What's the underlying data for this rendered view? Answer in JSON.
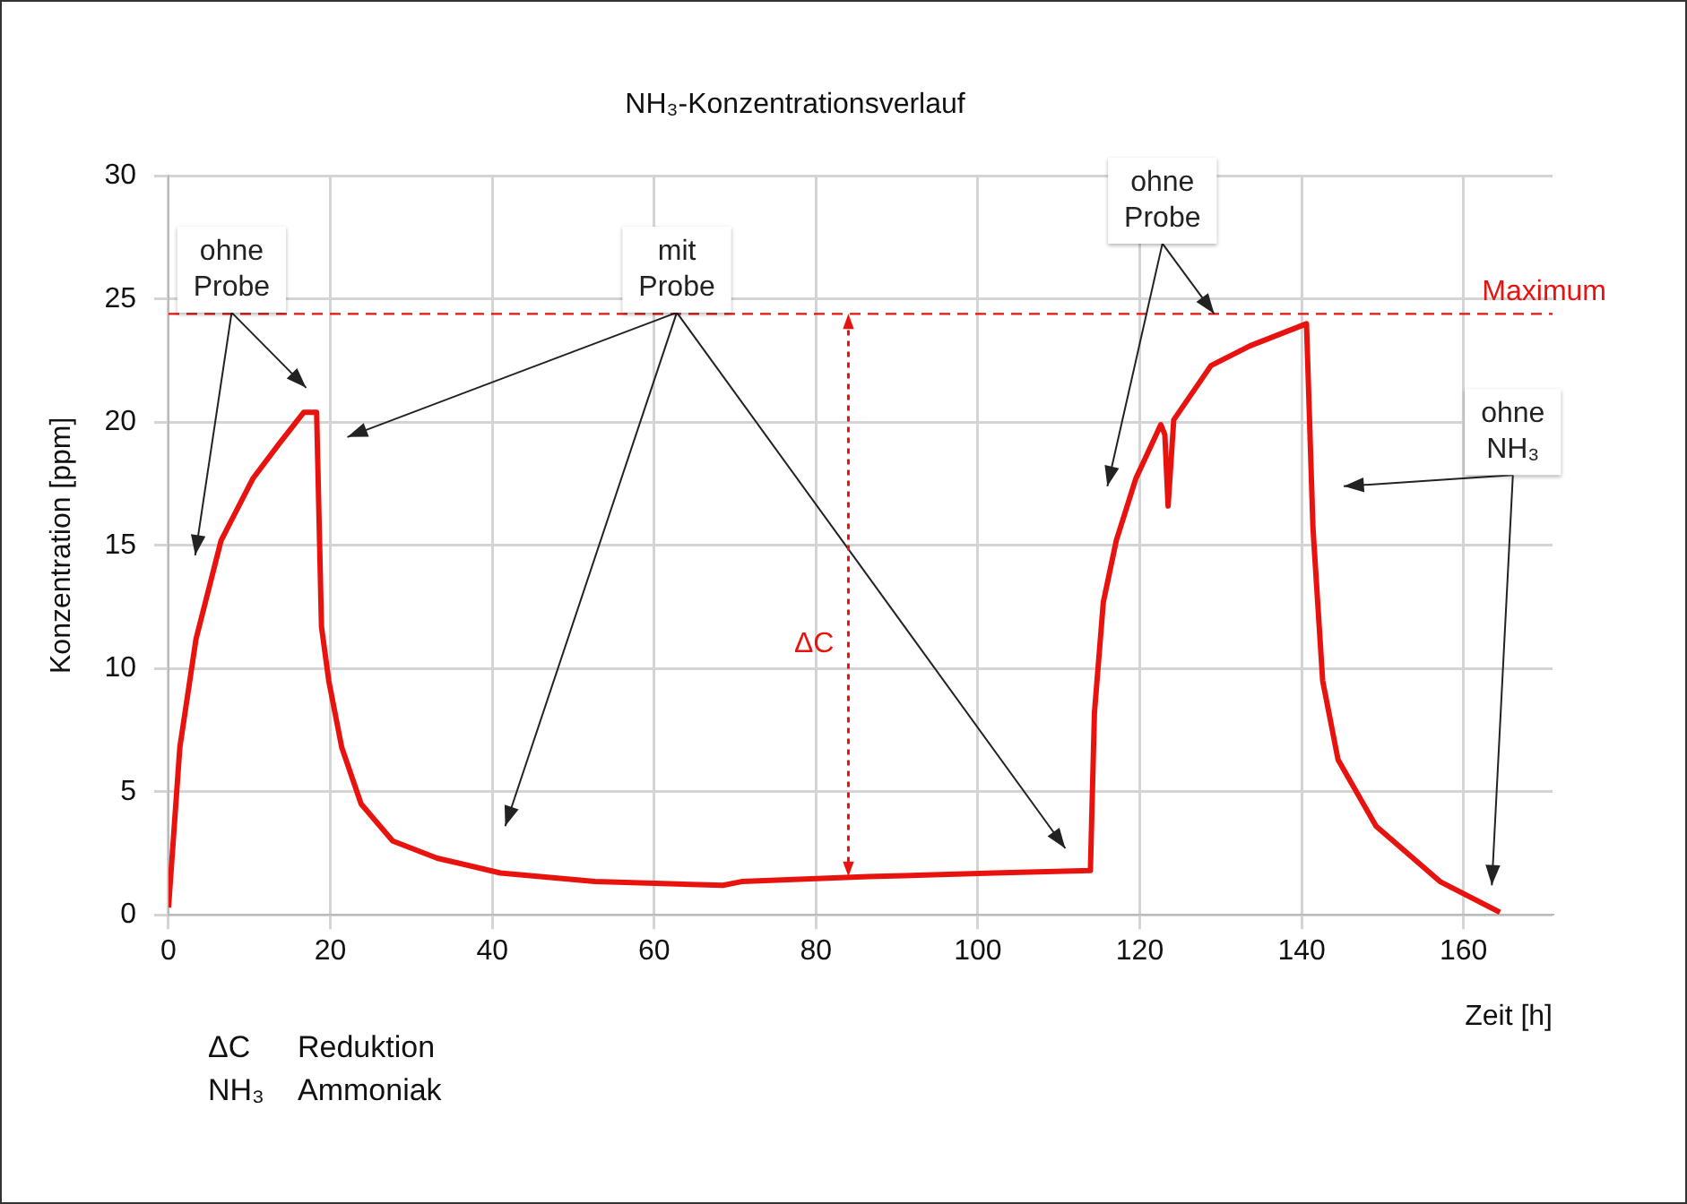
{
  "chart_data": {
    "type": "line",
    "title": "NH₃-Konzentrationsverlauf",
    "xlabel": "Zeit [h]",
    "ylabel": "Konzentration [ppm]",
    "series": [
      {
        "color": "#e8130f",
        "x": [
          0,
          1.4,
          3.4,
          6.5,
          10.4,
          13.6,
          16.7,
          18.3,
          18.9,
          19.8,
          21.4,
          23.8,
          27.7,
          33.2,
          41,
          52.7,
          68.5,
          70.8,
          86.5,
          102,
          113.9,
          114.4,
          115.5,
          117.1,
          119.5,
          122.6,
          123.1,
          123.5,
          124.2,
          128.8,
          133.6,
          140.6,
          141.4,
          142.6,
          144.5,
          149.2,
          157.1,
          164.5
        ],
        "values": [
          0.3,
          6.8,
          11.2,
          15.2,
          17.7,
          19.1,
          20.4,
          20.4,
          11.7,
          9.5,
          6.8,
          4.5,
          3.0,
          2.3,
          1.7,
          1.35,
          1.2,
          1.35,
          1.55,
          1.7,
          1.8,
          8.2,
          12.7,
          15.2,
          17.7,
          19.9,
          19.5,
          16.6,
          20.1,
          22.3,
          23.1,
          24.0,
          15.7,
          9.5,
          6.3,
          3.6,
          1.35,
          0.1
        ]
      }
    ],
    "xlim": [
      0,
      171
    ],
    "xticks": [
      0,
      20,
      40,
      60,
      80,
      100,
      120,
      140,
      160
    ],
    "ylim": [
      0,
      30
    ],
    "yticks": [
      0,
      5,
      10,
      15,
      20,
      25,
      30
    ],
    "grid": true,
    "legend": false,
    "marker": "none",
    "line_style": "solid",
    "ref_lines": [
      {
        "axis": "y",
        "value": 24.4,
        "label": "Maximum",
        "color": "#e8130f",
        "line_style": "dashed"
      }
    ],
    "annotations": [
      "ohne Probe",
      "mit Probe",
      {
        "text": "ohne Probe",
        "x": 129.2,
        "y": 24.4
      },
      "ohne NH₃",
      "ΔC",
      "ΔC Reduktion",
      "NH₃ Ammoniak"
    ]
  }
}
